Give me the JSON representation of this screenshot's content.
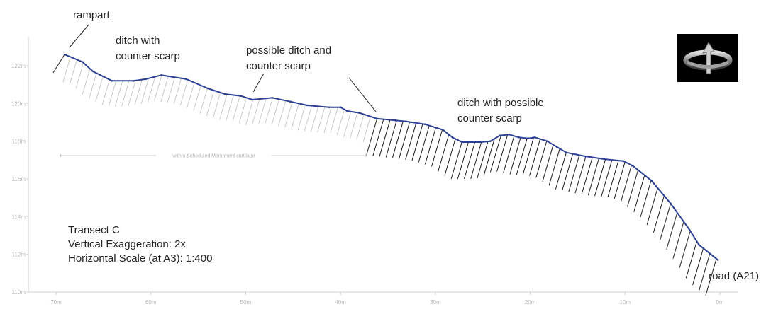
{
  "chart_data": {
    "type": "line",
    "xlim": [
      70,
      0
    ],
    "ylim": [
      110,
      123
    ],
    "x_ticks": [
      "70m",
      "60m",
      "50m",
      "40m",
      "30m",
      "20m",
      "10m",
      "0m"
    ],
    "y_ticks": [
      "110m",
      "112m",
      "114m",
      "116m",
      "118m",
      "120m",
      "122m"
    ],
    "series": [
      {
        "color": "#2b3f93",
        "x": [
          69.1,
          67.2,
          66.1,
          64.1,
          61.8,
          60.5,
          58.9,
          56.3,
          54.0,
          52.2,
          50.5,
          49.3,
          47.2,
          45.3,
          43.5,
          41.2,
          40.0,
          39.3,
          38.0,
          36.2,
          34.2,
          33.1,
          31.1,
          29.2,
          28.2,
          27.2,
          25.2,
          24.2,
          23.2,
          22.2,
          21.2,
          20.2,
          19.5,
          18.2,
          17.2,
          16.2,
          14.2,
          12.2,
          10.2,
          9.2,
          7.2,
          5.2,
          3.2,
          2.2,
          0.2
        ],
        "y": [
          122.6,
          122.2,
          121.7,
          121.2,
          121.2,
          121.3,
          121.5,
          121.3,
          120.8,
          120.5,
          120.4,
          120.2,
          120.3,
          120.1,
          119.9,
          119.8,
          119.8,
          119.6,
          119.5,
          119.2,
          119.1,
          119.05,
          118.9,
          118.6,
          118.2,
          117.95,
          117.95,
          118.0,
          118.3,
          118.35,
          118.2,
          118.15,
          118.2,
          118.0,
          117.7,
          117.4,
          117.2,
          117.05,
          116.95,
          116.7,
          115.9,
          114.7,
          113.3,
          112.5,
          111.7
        ]
      }
    ],
    "annotations": [
      {
        "text": "rampart",
        "x": 69.1,
        "y": 122.6
      },
      {
        "text": "ditch with",
        "x": 63.8,
        "y": 121.2
      },
      {
        "text": "counter scarp",
        "x": 63.8,
        "y": 121.2
      },
      {
        "text": "possible ditch and",
        "x": 49.4,
        "y": 120.25
      },
      {
        "text": "counter scarp",
        "x": 49.4,
        "y": 120.25
      },
      {
        "text": "ditch with possible",
        "x": 36.3,
        "y": 119.2
      },
      {
        "text": "counter scarp",
        "x": 36.3,
        "y": 119.2
      },
      {
        "text": "road (A21)",
        "x": 0.2,
        "y": 111.7
      }
    ],
    "extent_label": {
      "text": "within Scheduled Monument curtilage",
      "x_from": 69.5,
      "x_to": 37.3
    },
    "grid": false
  },
  "info": {
    "line1": "Transect C",
    "line2": "Vertical Exaggeration: 2x",
    "line3": "Horizontal Scale (at A3): 1:400"
  },
  "icon": "compass-rotation-icon"
}
